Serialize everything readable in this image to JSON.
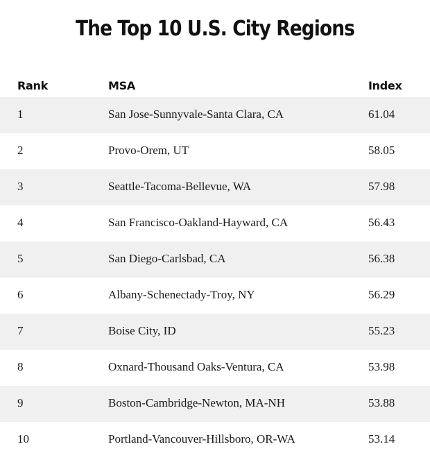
{
  "title": "The Top 10 U.S. City Regions",
  "columns": {
    "rank": "Rank",
    "msa": "MSA",
    "index": "Index"
  },
  "rows": [
    {
      "rank": "1",
      "msa": "San Jose-Sunnyvale-Santa Clara, CA",
      "index": "61.04"
    },
    {
      "rank": "2",
      "msa": "Provo-Orem, UT",
      "index": "58.05"
    },
    {
      "rank": "3",
      "msa": "Seattle-Tacoma-Bellevue, WA",
      "index": "57.98"
    },
    {
      "rank": "4",
      "msa": "San Francisco-Oakland-Hayward, CA",
      "index": "56.43"
    },
    {
      "rank": "5",
      "msa": "San Diego-Carlsbad, CA",
      "index": "56.38"
    },
    {
      "rank": "6",
      "msa": "Albany-Schenectady-Troy, NY",
      "index": "56.29"
    },
    {
      "rank": "7",
      "msa": "Boise City, ID",
      "index": "55.23"
    },
    {
      "rank": "8",
      "msa": "Oxnard-Thousand Oaks-Ventura, CA",
      "index": "53.98"
    },
    {
      "rank": "9",
      "msa": "Boston-Cambridge-Newton, MA-NH",
      "index": "53.88"
    },
    {
      "rank": "10",
      "msa": "Portland-Vancouver-Hillsboro, OR-WA",
      "index": "53.14"
    }
  ]
}
